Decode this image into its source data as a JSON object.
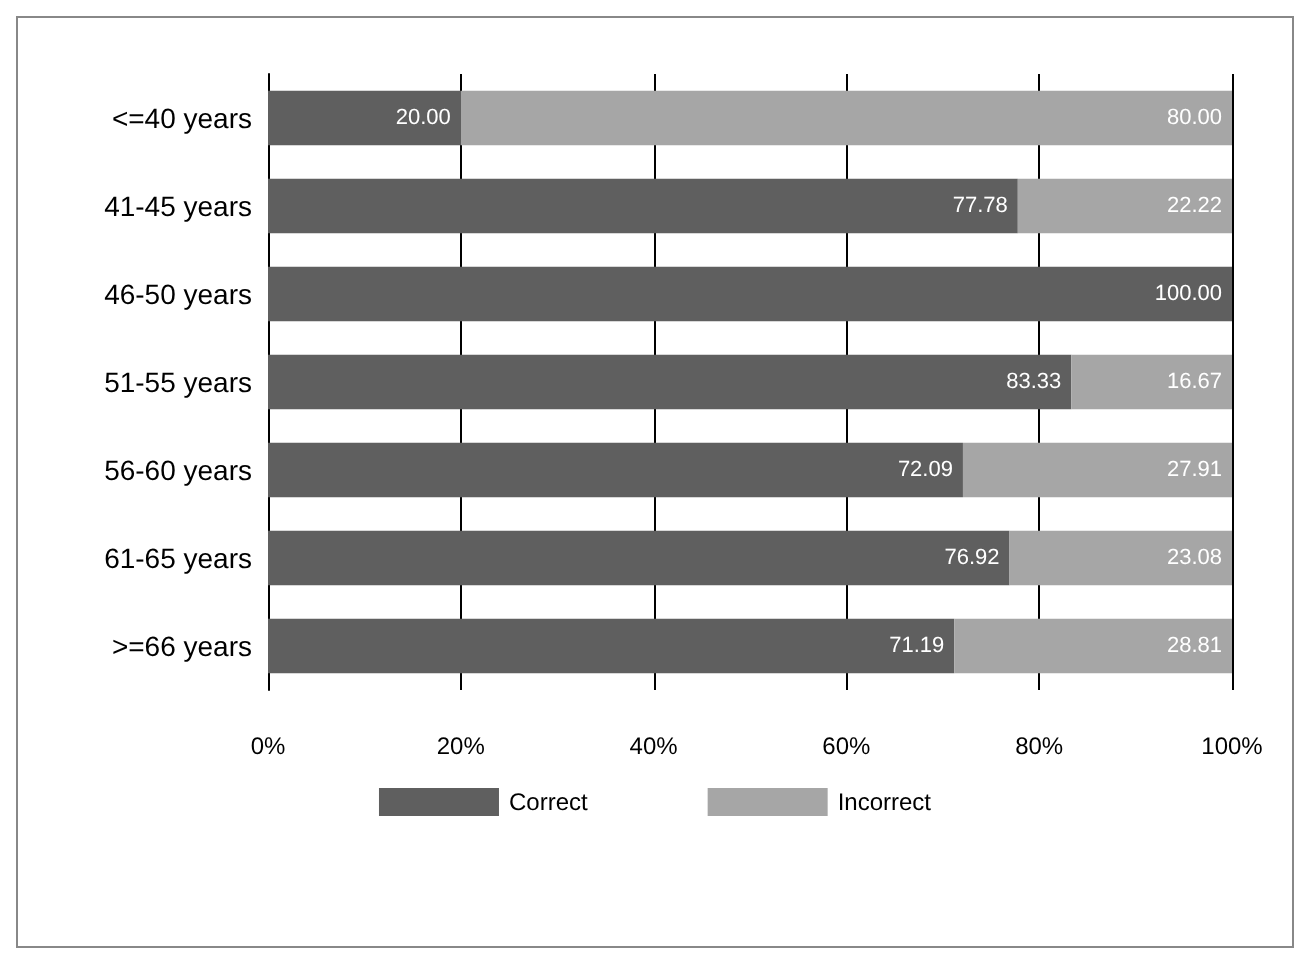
{
  "chart_data": {
    "type": "bar",
    "orientation": "horizontal",
    "stacked": true,
    "categories": [
      "<=40 years",
      "41-45 years",
      "46-50 years",
      "51-55 years",
      "56-60 years",
      "61-65 years",
      ">=66 years"
    ],
    "series": [
      {
        "name": "Correct",
        "color": "#5f5f5f",
        "values": [
          20,
          77.78,
          100,
          83.33,
          72.09,
          76.92,
          71.19
        ],
        "value_labels": [
          "20.00",
          "77.78",
          "100.00",
          "83.33",
          "72.09",
          "76.92",
          "71.19"
        ]
      },
      {
        "name": "Incorrect",
        "color": "#a6a6a6",
        "values": [
          80,
          22.22,
          0,
          16.67,
          27.91,
          23.08,
          28.81
        ],
        "value_labels": [
          "80.00",
          "22.22",
          null,
          "16.67",
          "27.91",
          "23.08",
          "28.81"
        ]
      }
    ],
    "xlim": [
      0,
      100
    ],
    "xticks": [
      {
        "value": 0,
        "label": "0%"
      },
      {
        "value": 20,
        "label": "20%"
      },
      {
        "value": 40,
        "label": "40%"
      },
      {
        "value": 60,
        "label": "60%"
      },
      {
        "value": 80,
        "label": "80%"
      },
      {
        "value": 100,
        "label": "100%"
      }
    ],
    "grid": "x",
    "legend": "bottom"
  }
}
